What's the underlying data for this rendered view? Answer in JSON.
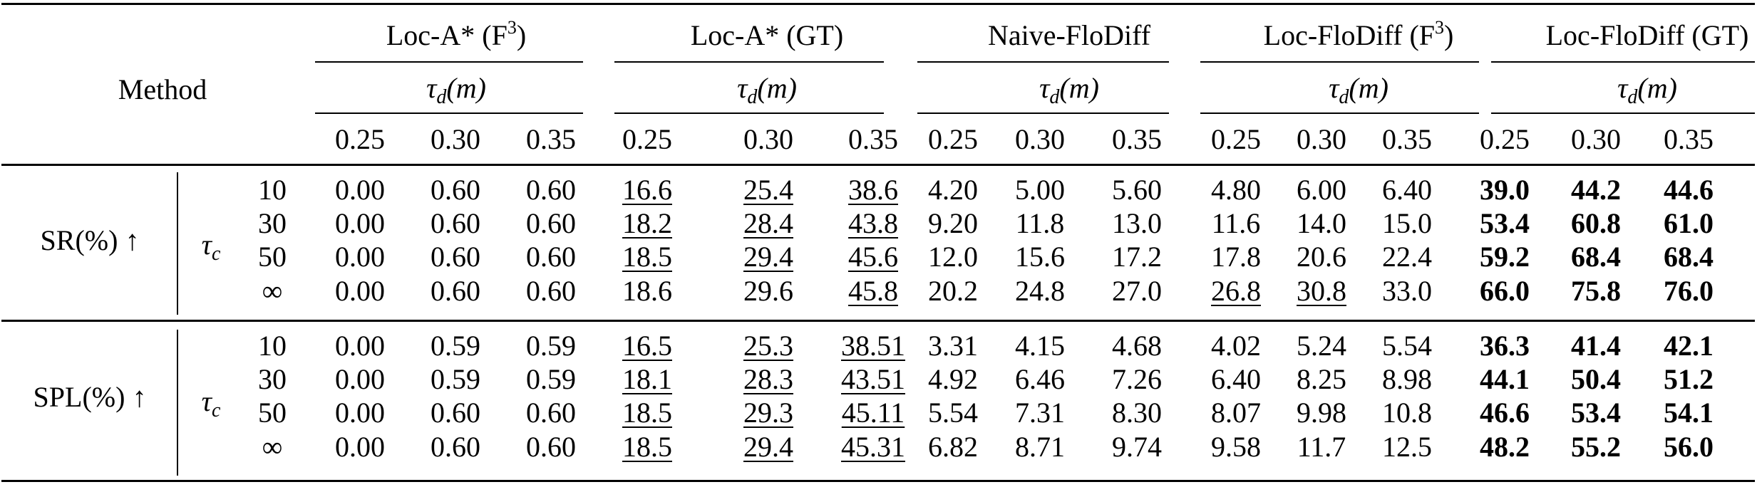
{
  "table": {
    "method_label": "Method",
    "group_headers": [
      {
        "name": "Loc-A* (F",
        "sup": "3",
        "close": ")"
      },
      {
        "name": "Loc-A* (GT)",
        "sup": "",
        "close": ""
      },
      {
        "name": "Naive-FloDiff",
        "sup": "",
        "close": ""
      },
      {
        "name": "Loc-FloDiff (F",
        "sup": "3",
        "close": ")"
      },
      {
        "name": "Loc-FloDiff (GT)",
        "sup": "",
        "close": ""
      }
    ],
    "sub_header": {
      "symbol": "τ",
      "subscript": "d",
      "unit": "(m)"
    },
    "thresholds": [
      "0.25",
      "0.30",
      "0.35"
    ],
    "tau_c": {
      "symbol": "τ",
      "subscript": "c"
    },
    "blocks": [
      {
        "metric": "SR(%) ↑",
        "rows": [
          {
            "k": "10",
            "cells": [
              {
                "v": "0.00",
                "s": ""
              },
              {
                "v": "0.60",
                "s": ""
              },
              {
                "v": "0.60",
                "s": ""
              },
              {
                "v": "16.6",
                "s": "u"
              },
              {
                "v": "25.4",
                "s": "u"
              },
              {
                "v": "38.6",
                "s": "u"
              },
              {
                "v": "4.20",
                "s": ""
              },
              {
                "v": "5.00",
                "s": ""
              },
              {
                "v": "5.60",
                "s": ""
              },
              {
                "v": "4.80",
                "s": ""
              },
              {
                "v": "6.00",
                "s": ""
              },
              {
                "v": "6.40",
                "s": ""
              },
              {
                "v": "39.0",
                "s": "b"
              },
              {
                "v": "44.2",
                "s": "b"
              },
              {
                "v": "44.6",
                "s": "b"
              }
            ]
          },
          {
            "k": "30",
            "cells": [
              {
                "v": "0.00",
                "s": ""
              },
              {
                "v": "0.60",
                "s": ""
              },
              {
                "v": "0.60",
                "s": ""
              },
              {
                "v": "18.2",
                "s": "u"
              },
              {
                "v": "28.4",
                "s": "u"
              },
              {
                "v": "43.8",
                "s": "u"
              },
              {
                "v": "9.20",
                "s": ""
              },
              {
                "v": "11.8",
                "s": ""
              },
              {
                "v": "13.0",
                "s": ""
              },
              {
                "v": "11.6",
                "s": ""
              },
              {
                "v": "14.0",
                "s": ""
              },
              {
                "v": "15.0",
                "s": ""
              },
              {
                "v": "53.4",
                "s": "b"
              },
              {
                "v": "60.8",
                "s": "b"
              },
              {
                "v": "61.0",
                "s": "b"
              }
            ]
          },
          {
            "k": "50",
            "cells": [
              {
                "v": "0.00",
                "s": ""
              },
              {
                "v": "0.60",
                "s": ""
              },
              {
                "v": "0.60",
                "s": ""
              },
              {
                "v": "18.5",
                "s": "u"
              },
              {
                "v": "29.4",
                "s": "u"
              },
              {
                "v": "45.6",
                "s": "u"
              },
              {
                "v": "12.0",
                "s": ""
              },
              {
                "v": "15.6",
                "s": ""
              },
              {
                "v": "17.2",
                "s": ""
              },
              {
                "v": "17.8",
                "s": ""
              },
              {
                "v": "20.6",
                "s": ""
              },
              {
                "v": "22.4",
                "s": ""
              },
              {
                "v": "59.2",
                "s": "b"
              },
              {
                "v": "68.4",
                "s": "b"
              },
              {
                "v": "68.4",
                "s": "b"
              }
            ]
          },
          {
            "k": "∞",
            "cells": [
              {
                "v": "0.00",
                "s": ""
              },
              {
                "v": "0.60",
                "s": ""
              },
              {
                "v": "0.60",
                "s": ""
              },
              {
                "v": "18.6",
                "s": ""
              },
              {
                "v": "29.6",
                "s": ""
              },
              {
                "v": "45.8",
                "s": "u"
              },
              {
                "v": "20.2",
                "s": ""
              },
              {
                "v": "24.8",
                "s": ""
              },
              {
                "v": "27.0",
                "s": ""
              },
              {
                "v": "26.8",
                "s": "u"
              },
              {
                "v": "30.8",
                "s": "u"
              },
              {
                "v": "33.0",
                "s": ""
              },
              {
                "v": "66.0",
                "s": "b"
              },
              {
                "v": "75.8",
                "s": "b"
              },
              {
                "v": "76.0",
                "s": "b"
              }
            ]
          }
        ]
      },
      {
        "metric": "SPL(%) ↑",
        "rows": [
          {
            "k": "10",
            "cells": [
              {
                "v": "0.00",
                "s": ""
              },
              {
                "v": "0.59",
                "s": ""
              },
              {
                "v": "0.59",
                "s": ""
              },
              {
                "v": "16.5",
                "s": "u"
              },
              {
                "v": "25.3",
                "s": "u"
              },
              {
                "v": "38.51",
                "s": "u"
              },
              {
                "v": "3.31",
                "s": ""
              },
              {
                "v": "4.15",
                "s": ""
              },
              {
                "v": "4.68",
                "s": ""
              },
              {
                "v": "4.02",
                "s": ""
              },
              {
                "v": "5.24",
                "s": ""
              },
              {
                "v": "5.54",
                "s": ""
              },
              {
                "v": "36.3",
                "s": "b"
              },
              {
                "v": "41.4",
                "s": "b"
              },
              {
                "v": "42.1",
                "s": "b"
              }
            ]
          },
          {
            "k": "30",
            "cells": [
              {
                "v": "0.00",
                "s": ""
              },
              {
                "v": "0.59",
                "s": ""
              },
              {
                "v": "0.59",
                "s": ""
              },
              {
                "v": "18.1",
                "s": "u"
              },
              {
                "v": "28.3",
                "s": "u"
              },
              {
                "v": "43.51",
                "s": "u"
              },
              {
                "v": "4.92",
                "s": ""
              },
              {
                "v": "6.46",
                "s": ""
              },
              {
                "v": "7.26",
                "s": ""
              },
              {
                "v": "6.40",
                "s": ""
              },
              {
                "v": "8.25",
                "s": ""
              },
              {
                "v": "8.98",
                "s": ""
              },
              {
                "v": "44.1",
                "s": "b"
              },
              {
                "v": "50.4",
                "s": "b"
              },
              {
                "v": "51.2",
                "s": "b"
              }
            ]
          },
          {
            "k": "50",
            "cells": [
              {
                "v": "0.00",
                "s": ""
              },
              {
                "v": "0.60",
                "s": ""
              },
              {
                "v": "0.60",
                "s": ""
              },
              {
                "v": "18.5",
                "s": "u"
              },
              {
                "v": "29.3",
                "s": "u"
              },
              {
                "v": "45.11",
                "s": "u"
              },
              {
                "v": "5.54",
                "s": ""
              },
              {
                "v": "7.31",
                "s": ""
              },
              {
                "v": "8.30",
                "s": ""
              },
              {
                "v": "8.07",
                "s": ""
              },
              {
                "v": "9.98",
                "s": ""
              },
              {
                "v": "10.8",
                "s": ""
              },
              {
                "v": "46.6",
                "s": "b"
              },
              {
                "v": "53.4",
                "s": "b"
              },
              {
                "v": "54.1",
                "s": "b"
              }
            ]
          },
          {
            "k": "∞",
            "cells": [
              {
                "v": "0.00",
                "s": ""
              },
              {
                "v": "0.60",
                "s": ""
              },
              {
                "v": "0.60",
                "s": ""
              },
              {
                "v": "18.5",
                "s": "u"
              },
              {
                "v": "29.4",
                "s": "u"
              },
              {
                "v": "45.31",
                "s": "u"
              },
              {
                "v": "6.82",
                "s": ""
              },
              {
                "v": "8.71",
                "s": ""
              },
              {
                "v": "9.74",
                "s": ""
              },
              {
                "v": "9.58",
                "s": ""
              },
              {
                "v": "11.7",
                "s": ""
              },
              {
                "v": "12.5",
                "s": ""
              },
              {
                "v": "48.2",
                "s": "b"
              },
              {
                "v": "55.2",
                "s": "b"
              },
              {
                "v": "56.0",
                "s": "b"
              }
            ]
          }
        ]
      }
    ]
  }
}
